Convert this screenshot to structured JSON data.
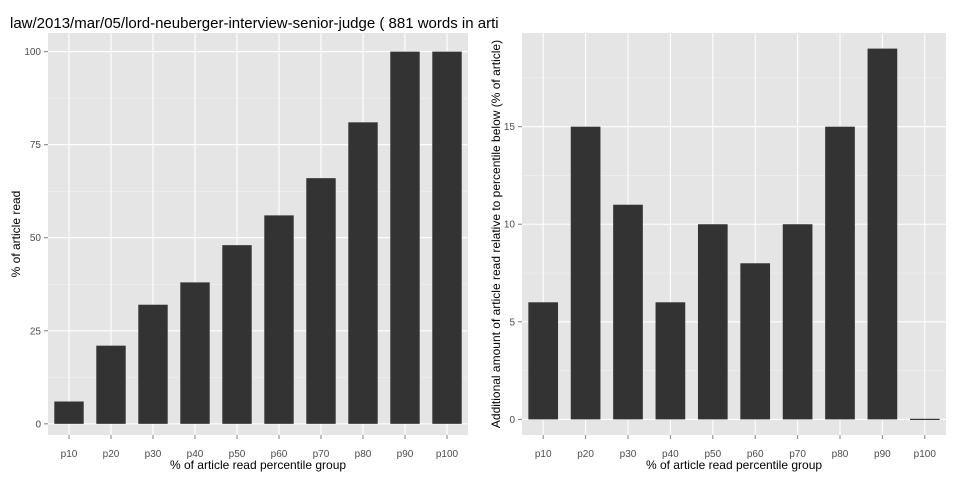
{
  "page_title": "law/2013/mar/05/lord-neuberger-interview-senior-judge ( 881 words in arti",
  "colors": {
    "panel_bg": "#e5e5e5",
    "grid_major": "#ffffff",
    "grid_minor": "#f2f2f2",
    "bar": "#333333",
    "tick_text": "#4d4d4d"
  },
  "chart_data": [
    {
      "type": "bar",
      "title": "law/2013/mar/05/lord-neuberger-interview-senior-judge ( 881 words in arti",
      "categories": [
        "p10",
        "p20",
        "p30",
        "p40",
        "p50",
        "p60",
        "p70",
        "p80",
        "p90",
        "p100"
      ],
      "values": [
        6,
        21,
        32,
        38,
        48,
        56,
        66,
        81,
        100,
        100
      ],
      "xlabel": "% of article read percentile group",
      "ylabel": "% of article read",
      "ylim": [
        -3,
        105
      ],
      "yticks": [
        0,
        25,
        50,
        75,
        100
      ],
      "grid": true
    },
    {
      "type": "bar",
      "title": "",
      "categories": [
        "p10",
        "p20",
        "p30",
        "p40",
        "p50",
        "p60",
        "p70",
        "p80",
        "p90",
        "p100"
      ],
      "values": [
        6,
        15,
        11,
        6,
        10,
        8,
        10,
        15,
        19,
        0
      ],
      "xlabel": "% of article read percentile group",
      "ylabel": "Additional amount of article read relative to percentile below (% of article)",
      "ylim": [
        -0.8,
        19.8
      ],
      "yticks": [
        0,
        5,
        10,
        15
      ],
      "grid": true
    }
  ]
}
